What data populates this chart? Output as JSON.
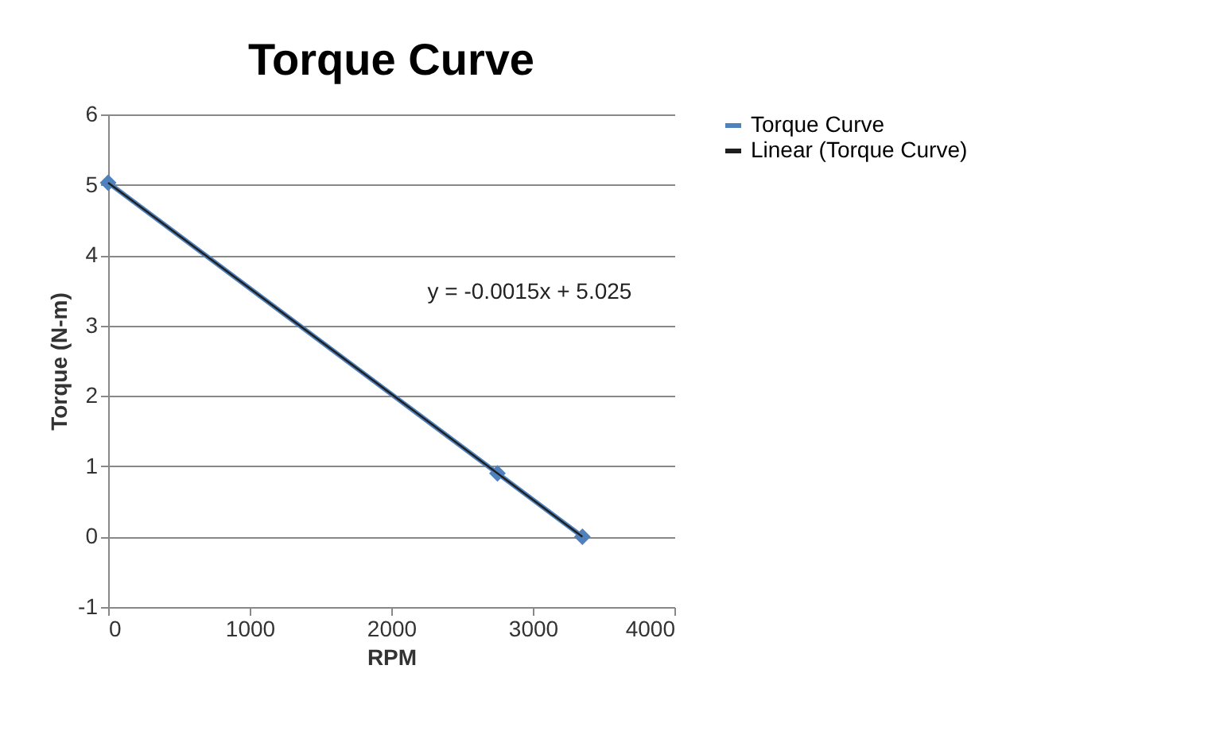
{
  "chart_data": {
    "type": "line",
    "title": "Torque Curve",
    "xlabel": "RPM",
    "ylabel": "Torque (N-m)",
    "x": [
      0,
      2750,
      3350
    ],
    "series": [
      {
        "name": "Torque Curve",
        "color": "#4f81bd",
        "values": [
          5.03,
          0.9,
          0.0
        ],
        "marker": "diamond"
      },
      {
        "name": "Linear (Torque Curve)",
        "color": "#1f1f1f",
        "type": "line",
        "x": [
          0,
          3350
        ],
        "values": [
          5.03,
          0.0
        ],
        "marker": "none"
      }
    ],
    "annotations": [
      "y = -0.0015x + 5.025"
    ],
    "xlim": [
      0,
      4000
    ],
    "xticks": [
      0,
      1000,
      2000,
      3000,
      4000
    ],
    "ylim": [
      -1,
      6
    ],
    "yticks": [
      -1,
      0,
      1,
      2,
      3,
      4,
      5,
      6
    ],
    "grid": "y",
    "legend": "right"
  }
}
